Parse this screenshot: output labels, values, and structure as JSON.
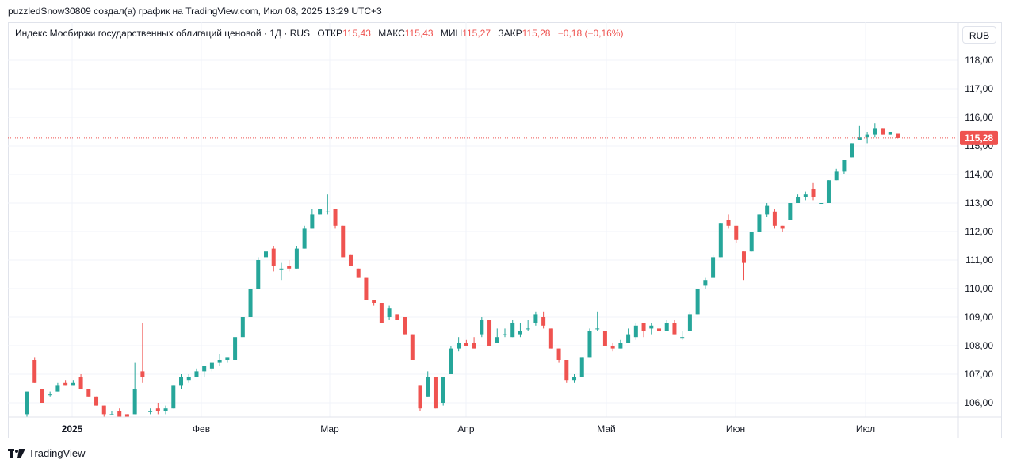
{
  "attribution": "puzzledSnow30809 создал(а) график на TradingView.com, Июл 08, 2025 13:29 UTC+3",
  "legend": {
    "title": "Индекс Мосбиржи государственных облигаций ценовой · 1Д · RUS",
    "open_label": "ОТКР",
    "open_value": "115,43",
    "high_label": "МАКС",
    "high_value": "115,43",
    "low_label": "МИН",
    "low_value": "115,27",
    "close_label": "ЗАКР",
    "close_value": "115,28",
    "change": "−0,18 (−0,16%)"
  },
  "currency_button": "RUB",
  "footer_brand": "TradingView",
  "colors": {
    "up": "#26a69a",
    "down": "#ef5350",
    "grid": "#f0f3fa",
    "last_price": "#ef5350"
  },
  "chart_data": {
    "type": "candlestick",
    "title": "Индекс Мосбиржи государственных облигаций ценовой",
    "ylim": [
      105.5,
      118.8
    ],
    "y_ticks": [
      "106,00",
      "107,00",
      "108,00",
      "109,00",
      "110,00",
      "111,00",
      "112,00",
      "113,00",
      "114,00",
      "115,00",
      "116,00",
      "117,00",
      "118,00"
    ],
    "x_ticks": [
      "2025",
      "Фев",
      "Мар",
      "Апр",
      "Май",
      "Июн",
      "Июл"
    ],
    "last_price": "115,28",
    "candles": [
      {
        "o": 105.6,
        "h": 106.4,
        "l": 105.5,
        "c": 106.4
      },
      {
        "o": 107.5,
        "h": 107.6,
        "l": 106.7,
        "c": 106.7
      },
      {
        "o": 106.5,
        "h": 106.5,
        "l": 106.0,
        "c": 106.0
      },
      {
        "o": 106.3,
        "h": 106.4,
        "l": 106.2,
        "c": 106.3
      },
      {
        "o": 106.4,
        "h": 106.7,
        "l": 106.4,
        "c": 106.6
      },
      {
        "o": 106.7,
        "h": 106.8,
        "l": 106.6,
        "c": 106.6
      },
      {
        "o": 106.6,
        "h": 106.8,
        "l": 106.6,
        "c": 106.7
      },
      {
        "o": 106.9,
        "h": 107.0,
        "l": 106.5,
        "c": 106.5
      },
      {
        "o": 106.5,
        "h": 106.5,
        "l": 106.2,
        "c": 106.2
      },
      {
        "o": 106.2,
        "h": 106.2,
        "l": 105.9,
        "c": 105.9
      },
      {
        "o": 105.9,
        "h": 105.9,
        "l": 105.5,
        "c": 105.6
      },
      {
        "o": 105.6,
        "h": 105.7,
        "l": 105.6,
        "c": 105.6
      },
      {
        "o": 105.7,
        "h": 105.8,
        "l": 105.5,
        "c": 105.5
      },
      {
        "o": 105.6,
        "h": 105.6,
        "l": 105.5,
        "c": 105.5
      },
      {
        "o": 105.6,
        "h": 107.4,
        "l": 105.6,
        "c": 106.5
      },
      {
        "o": 107.1,
        "h": 108.8,
        "l": 106.7,
        "c": 106.9
      },
      {
        "o": 105.7,
        "h": 105.8,
        "l": 105.6,
        "c": 105.7
      },
      {
        "o": 105.8,
        "h": 106.0,
        "l": 105.6,
        "c": 105.7
      },
      {
        "o": 105.7,
        "h": 105.9,
        "l": 105.6,
        "c": 105.8
      },
      {
        "o": 105.8,
        "h": 106.6,
        "l": 105.8,
        "c": 106.6
      },
      {
        "o": 106.6,
        "h": 107.0,
        "l": 106.5,
        "c": 106.9
      },
      {
        "o": 106.8,
        "h": 107.0,
        "l": 106.7,
        "c": 106.9
      },
      {
        "o": 106.9,
        "h": 107.2,
        "l": 106.9,
        "c": 107.1
      },
      {
        "o": 107.1,
        "h": 107.3,
        "l": 106.9,
        "c": 107.3
      },
      {
        "o": 107.2,
        "h": 107.4,
        "l": 107.1,
        "c": 107.4
      },
      {
        "o": 107.4,
        "h": 107.7,
        "l": 107.3,
        "c": 107.5
      },
      {
        "o": 107.5,
        "h": 107.6,
        "l": 107.4,
        "c": 107.6
      },
      {
        "o": 107.5,
        "h": 108.3,
        "l": 107.5,
        "c": 108.3
      },
      {
        "o": 108.3,
        "h": 109.0,
        "l": 108.3,
        "c": 109.0
      },
      {
        "o": 109.0,
        "h": 110.0,
        "l": 109.0,
        "c": 110.0
      },
      {
        "o": 110.0,
        "h": 111.1,
        "l": 110.0,
        "c": 111.0
      },
      {
        "o": 111.1,
        "h": 111.5,
        "l": 111.0,
        "c": 111.3
      },
      {
        "o": 111.4,
        "h": 111.5,
        "l": 110.6,
        "c": 110.8
      },
      {
        "o": 110.7,
        "h": 110.9,
        "l": 110.3,
        "c": 110.7
      },
      {
        "o": 110.8,
        "h": 111.0,
        "l": 110.6,
        "c": 110.7
      },
      {
        "o": 110.7,
        "h": 111.5,
        "l": 110.7,
        "c": 111.4
      },
      {
        "o": 111.4,
        "h": 112.2,
        "l": 111.4,
        "c": 112.1
      },
      {
        "o": 112.1,
        "h": 112.8,
        "l": 112.1,
        "c": 112.6
      },
      {
        "o": 112.6,
        "h": 112.8,
        "l": 112.6,
        "c": 112.8
      },
      {
        "o": 112.7,
        "h": 113.3,
        "l": 112.6,
        "c": 112.7
      },
      {
        "o": 112.8,
        "h": 112.8,
        "l": 112.1,
        "c": 112.2
      },
      {
        "o": 112.2,
        "h": 112.2,
        "l": 111.1,
        "c": 111.1
      },
      {
        "o": 111.2,
        "h": 111.2,
        "l": 110.8,
        "c": 110.8
      },
      {
        "o": 110.7,
        "h": 110.7,
        "l": 110.4,
        "c": 110.4
      },
      {
        "o": 110.4,
        "h": 110.4,
        "l": 109.6,
        "c": 109.6
      },
      {
        "o": 109.6,
        "h": 109.6,
        "l": 109.4,
        "c": 109.5
      },
      {
        "o": 109.5,
        "h": 109.5,
        "l": 108.8,
        "c": 108.8
      },
      {
        "o": 109.0,
        "h": 109.4,
        "l": 108.9,
        "c": 109.3
      },
      {
        "o": 109.1,
        "h": 109.1,
        "l": 108.9,
        "c": 108.9
      },
      {
        "o": 109.0,
        "h": 109.0,
        "l": 108.4,
        "c": 108.4
      },
      {
        "o": 108.4,
        "h": 108.4,
        "l": 107.5,
        "c": 107.5
      },
      {
        "o": 106.6,
        "h": 106.6,
        "l": 105.7,
        "c": 105.8
      },
      {
        "o": 106.2,
        "h": 107.1,
        "l": 106.2,
        "c": 106.9
      },
      {
        "o": 106.9,
        "h": 106.9,
        "l": 105.8,
        "c": 105.8
      },
      {
        "o": 106.0,
        "h": 106.9,
        "l": 105.9,
        "c": 106.9
      },
      {
        "o": 107.0,
        "h": 108.0,
        "l": 107.0,
        "c": 107.9
      },
      {
        "o": 107.9,
        "h": 108.3,
        "l": 107.8,
        "c": 108.1
      },
      {
        "o": 108.1,
        "h": 108.2,
        "l": 108.0,
        "c": 108.0
      },
      {
        "o": 108.1,
        "h": 108.3,
        "l": 107.9,
        "c": 107.9
      },
      {
        "o": 108.4,
        "h": 109.0,
        "l": 108.3,
        "c": 108.9
      },
      {
        "o": 108.9,
        "h": 108.9,
        "l": 108.0,
        "c": 108.0
      },
      {
        "o": 108.1,
        "h": 108.6,
        "l": 108.1,
        "c": 108.3
      },
      {
        "o": 108.4,
        "h": 108.6,
        "l": 108.3,
        "c": 108.4
      },
      {
        "o": 108.3,
        "h": 108.9,
        "l": 108.3,
        "c": 108.8
      },
      {
        "o": 108.4,
        "h": 108.8,
        "l": 108.3,
        "c": 108.5
      },
      {
        "o": 108.6,
        "h": 108.9,
        "l": 108.5,
        "c": 108.6
      },
      {
        "o": 108.8,
        "h": 109.2,
        "l": 108.7,
        "c": 109.1
      },
      {
        "o": 109.0,
        "h": 109.2,
        "l": 108.6,
        "c": 108.7
      },
      {
        "o": 108.6,
        "h": 108.6,
        "l": 107.9,
        "c": 107.9
      },
      {
        "o": 107.9,
        "h": 107.9,
        "l": 107.4,
        "c": 107.5
      },
      {
        "o": 107.5,
        "h": 107.5,
        "l": 106.7,
        "c": 106.8
      },
      {
        "o": 106.8,
        "h": 107.0,
        "l": 106.7,
        "c": 106.9
      },
      {
        "o": 106.9,
        "h": 107.6,
        "l": 106.9,
        "c": 107.6
      },
      {
        "o": 107.6,
        "h": 108.6,
        "l": 107.6,
        "c": 108.5
      },
      {
        "o": 108.6,
        "h": 109.2,
        "l": 108.5,
        "c": 108.6
      },
      {
        "o": 108.5,
        "h": 108.5,
        "l": 108.0,
        "c": 108.0
      },
      {
        "o": 108.0,
        "h": 108.1,
        "l": 107.8,
        "c": 107.9
      },
      {
        "o": 107.9,
        "h": 108.2,
        "l": 107.9,
        "c": 108.1
      },
      {
        "o": 108.1,
        "h": 108.6,
        "l": 108.1,
        "c": 108.4
      },
      {
        "o": 108.3,
        "h": 108.8,
        "l": 108.2,
        "c": 108.7
      },
      {
        "o": 108.8,
        "h": 108.8,
        "l": 108.3,
        "c": 108.5
      },
      {
        "o": 108.6,
        "h": 108.8,
        "l": 108.4,
        "c": 108.7
      },
      {
        "o": 108.6,
        "h": 108.7,
        "l": 108.4,
        "c": 108.5
      },
      {
        "o": 108.5,
        "h": 108.9,
        "l": 108.5,
        "c": 108.8
      },
      {
        "o": 108.8,
        "h": 108.9,
        "l": 108.4,
        "c": 108.4
      },
      {
        "o": 108.3,
        "h": 108.5,
        "l": 108.2,
        "c": 108.3
      },
      {
        "o": 108.5,
        "h": 109.2,
        "l": 108.5,
        "c": 109.1
      },
      {
        "o": 109.1,
        "h": 110.0,
        "l": 109.1,
        "c": 110.0
      },
      {
        "o": 110.1,
        "h": 110.4,
        "l": 110.0,
        "c": 110.3
      },
      {
        "o": 110.4,
        "h": 111.2,
        "l": 110.4,
        "c": 111.1
      },
      {
        "o": 111.1,
        "h": 112.3,
        "l": 111.1,
        "c": 112.3
      },
      {
        "o": 112.4,
        "h": 112.6,
        "l": 112.1,
        "c": 112.2
      },
      {
        "o": 112.2,
        "h": 112.2,
        "l": 111.6,
        "c": 111.7
      },
      {
        "o": 111.3,
        "h": 111.3,
        "l": 110.3,
        "c": 110.9
      },
      {
        "o": 111.3,
        "h": 112.0,
        "l": 111.3,
        "c": 112.0
      },
      {
        "o": 112.0,
        "h": 112.6,
        "l": 112.0,
        "c": 112.6
      },
      {
        "o": 112.6,
        "h": 113.0,
        "l": 112.5,
        "c": 112.9
      },
      {
        "o": 112.7,
        "h": 112.8,
        "l": 112.1,
        "c": 112.2
      },
      {
        "o": 112.2,
        "h": 112.2,
        "l": 112.0,
        "c": 112.1
      },
      {
        "o": 112.4,
        "h": 113.0,
        "l": 112.4,
        "c": 113.0
      },
      {
        "o": 113.0,
        "h": 113.3,
        "l": 113.0,
        "c": 113.2
      },
      {
        "o": 113.2,
        "h": 113.4,
        "l": 113.1,
        "c": 113.3
      },
      {
        "o": 113.5,
        "h": 113.7,
        "l": 113.1,
        "c": 113.2
      },
      {
        "o": 113.0,
        "h": 113.0,
        "l": 113.0,
        "c": 113.0
      },
      {
        "o": 113.0,
        "h": 113.8,
        "l": 113.0,
        "c": 113.8
      },
      {
        "o": 113.8,
        "h": 114.2,
        "l": 113.8,
        "c": 114.1
      },
      {
        "o": 114.1,
        "h": 114.5,
        "l": 114.0,
        "c": 114.5
      },
      {
        "o": 114.6,
        "h": 115.1,
        "l": 114.6,
        "c": 115.1
      },
      {
        "o": 115.2,
        "h": 115.7,
        "l": 115.2,
        "c": 115.3
      },
      {
        "o": 115.3,
        "h": 115.5,
        "l": 115.1,
        "c": 115.4
      },
      {
        "o": 115.4,
        "h": 115.8,
        "l": 115.3,
        "c": 115.6
      },
      {
        "o": 115.6,
        "h": 115.6,
        "l": 115.4,
        "c": 115.4
      },
      {
        "o": 115.4,
        "h": 115.5,
        "l": 115.4,
        "c": 115.5
      },
      {
        "o": 115.43,
        "h": 115.43,
        "l": 115.27,
        "c": 115.28
      }
    ]
  }
}
